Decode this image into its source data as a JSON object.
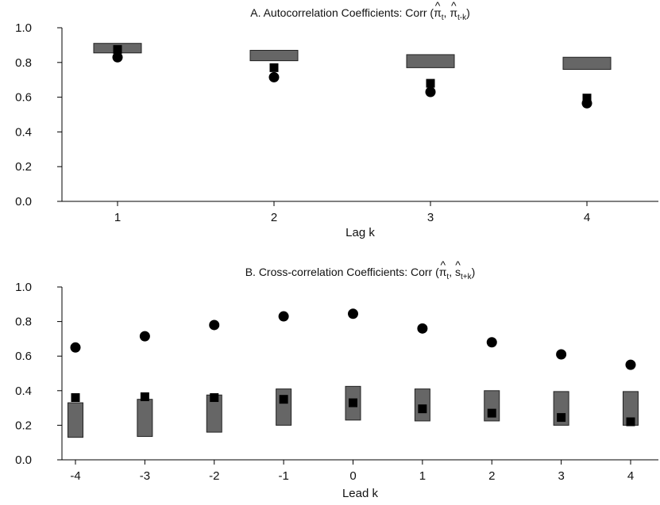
{
  "chart_data": [
    {
      "id": "A",
      "type": "scatter",
      "title": {
        "prefix": "A. Autocorrelation Coefficients: Corr (",
        "arg1": "π",
        "arg1_sub": "t",
        "sep": ", ",
        "arg2": "π",
        "arg2_sub": "t-k",
        "suffix": ")",
        "hat": "^"
      },
      "xlabel": "Lag k",
      "ylabel": "",
      "categories": [
        "1",
        "2",
        "3",
        "4"
      ],
      "ylim": [
        0,
        1
      ],
      "yticks": [
        "0.0",
        "0.2",
        "0.4",
        "0.6",
        "0.8",
        "1.0"
      ],
      "ytick_values": [
        0,
        0.2,
        0.4,
        0.6,
        0.8,
        1.0
      ],
      "grid": false,
      "series": [
        {
          "marker": "range-box",
          "low": [
            0.855,
            0.81,
            0.77,
            0.76
          ],
          "high": [
            0.91,
            0.87,
            0.845,
            0.83
          ]
        },
        {
          "marker": "square",
          "values": [
            0.875,
            0.77,
            0.68,
            0.595
          ]
        },
        {
          "marker": "circle",
          "values": [
            0.83,
            0.715,
            0.63,
            0.565
          ]
        }
      ]
    },
    {
      "id": "B",
      "type": "scatter",
      "title": {
        "prefix": "B. Cross-correlation Coefficients: Corr (",
        "arg1": "π",
        "arg1_sub": "t",
        "sep": ", ",
        "arg2": "s",
        "arg2_sub": "t+k",
        "suffix": ")",
        "hat": "^"
      },
      "xlabel": "Lead k",
      "ylabel": "",
      "categories": [
        "-4",
        "-3",
        "-2",
        "-1",
        "0",
        "1",
        "2",
        "3",
        "4"
      ],
      "ylim": [
        0,
        1
      ],
      "yticks": [
        "0.0",
        "0.2",
        "0.4",
        "0.6",
        "0.8",
        "1.0"
      ],
      "ytick_values": [
        0,
        0.2,
        0.4,
        0.6,
        0.8,
        1.0
      ],
      "grid": false,
      "series": [
        {
          "marker": "range-box",
          "low": [
            0.13,
            0.135,
            0.16,
            0.2,
            0.23,
            0.225,
            0.225,
            0.2,
            0.2
          ],
          "high": [
            0.33,
            0.35,
            0.375,
            0.41,
            0.425,
            0.41,
            0.4,
            0.395,
            0.395
          ]
        },
        {
          "marker": "square",
          "values": [
            0.36,
            0.365,
            0.36,
            0.35,
            0.33,
            0.295,
            0.27,
            0.245,
            0.22
          ]
        },
        {
          "marker": "circle",
          "values": [
            0.65,
            0.715,
            0.78,
            0.83,
            0.845,
            0.76,
            0.68,
            0.61,
            0.55
          ]
        }
      ]
    }
  ]
}
